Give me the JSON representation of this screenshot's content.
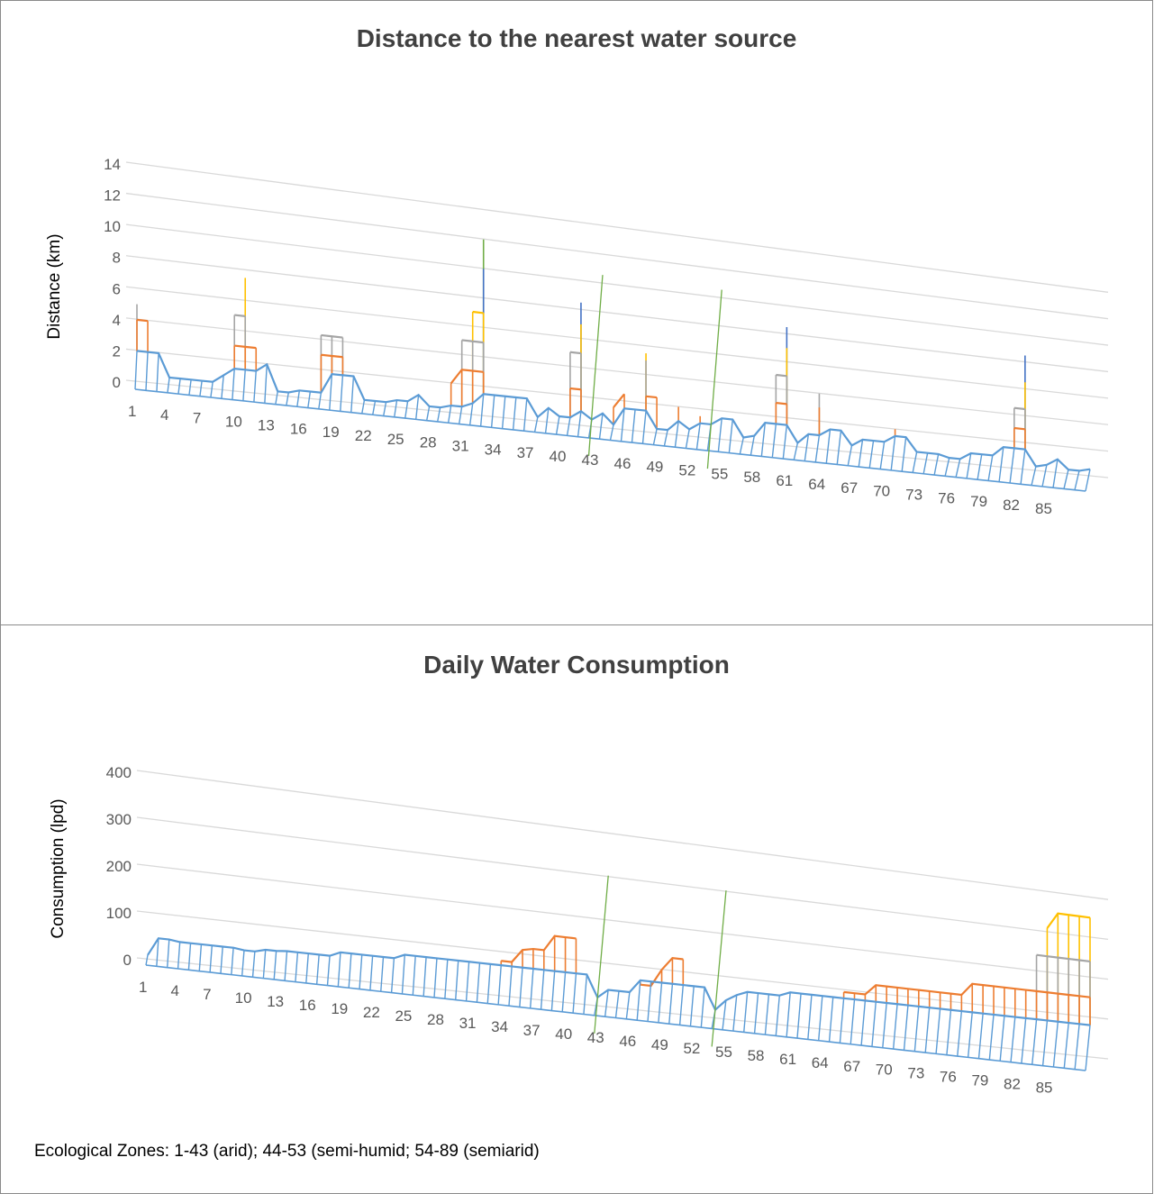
{
  "footnote": "Ecological Zones: 1-43 (arid); 44-53 (semi-humid; 54-89 (semiarid)",
  "chart_data": [
    {
      "type": "line-3d",
      "title": "Distance to the nearest water source",
      "ylabel": "Distance (km)",
      "ylim": [
        0,
        14
      ],
      "yticks": [
        "0",
        "2",
        "4",
        "6",
        "8",
        "10",
        "12",
        "14"
      ],
      "xticks": [
        "1",
        "4",
        "7",
        "10",
        "13",
        "16",
        "19",
        "22",
        "25",
        "28",
        "31",
        "34",
        "37",
        "40",
        "43",
        "46",
        "49",
        "52",
        "55",
        "58",
        "61",
        "64",
        "67",
        "70",
        "73",
        "76",
        "79",
        "82",
        "85"
      ],
      "zone_boundaries": [
        43,
        54
      ],
      "colors": {
        "base": "#5b9bd5",
        "orange": "#ed7d31",
        "gray": "#a5a5a5",
        "yellow": "#ffc000",
        "blue": "#4472c4",
        "green": "#70ad47",
        "grid": "#d9d9d9",
        "zone_line": "#70ad47"
      },
      "series": [
        {
          "values": [
            2,
            2,
            2,
            0.5,
            0.5,
            0.5,
            0.5,
            0.5,
            1,
            1.5,
            1.5,
            1.5,
            2,
            0.3,
            0.3,
            0.5,
            0.5,
            0.5,
            1.8,
            1.8,
            1.8,
            0.3,
            0.3,
            0.3,
            0.5,
            0.5,
            1,
            0.3,
            0.3,
            0.5,
            0.5,
            0.8,
            1.5,
            1.5,
            1.5,
            1.5,
            1.5,
            0.3,
            1,
            0.5,
            0.5,
            1,
            0.5,
            1,
            0.3,
            1.5,
            1.5,
            1.5,
            0.3,
            0.3,
            1,
            0.5,
            1,
            1,
            1.5,
            1.5,
            0.3,
            0.5,
            1.5,
            1.5,
            1.5,
            0.3,
            1,
            1,
            1.5,
            1.5,
            0.5,
            1,
            1,
            1,
            1.5,
            1.5,
            0.5,
            0.5,
            0.5,
            0.3,
            0.3,
            0.8,
            0.8,
            0.8,
            1.5,
            1.5,
            1.5,
            0.3,
            0.5,
            1,
            0.3,
            0.3,
            0.5
          ]
        },
        {
          "values": [
            4,
            4,
            0,
            0,
            0,
            0,
            0,
            0,
            0,
            3,
            3,
            3,
            0,
            0,
            0,
            0,
            0,
            3,
            3,
            3,
            0,
            0,
            0,
            0,
            0,
            0,
            0,
            0,
            0,
            2,
            3,
            3,
            3,
            0,
            1.5,
            0,
            0,
            0,
            0,
            0,
            2.5,
            2.5,
            0,
            0,
            1.5,
            2.5,
            0,
            2.5,
            2.5,
            0,
            2,
            0,
            1.5,
            0,
            0,
            0,
            0,
            0,
            0,
            3,
            3,
            0,
            0,
            3,
            0,
            0,
            0,
            0,
            0,
            0,
            2,
            0,
            0,
            0,
            0,
            0,
            0,
            0,
            0,
            0,
            0,
            3,
            3,
            0,
            0,
            0,
            0,
            0,
            0
          ]
        },
        {
          "values": [
            5,
            0,
            0,
            0,
            0,
            0,
            0,
            0,
            0,
            5,
            5,
            0,
            0,
            0,
            0,
            0,
            0,
            4.3,
            4.3,
            4.3,
            0,
            0,
            0,
            0,
            0,
            0,
            0,
            0,
            0,
            0,
            5,
            5,
            5,
            0,
            0,
            0,
            0,
            0,
            0,
            0,
            5,
            5,
            0,
            0,
            0,
            0,
            0,
            5,
            0,
            0,
            0,
            0,
            0,
            0,
            0,
            0,
            0,
            0,
            0,
            5,
            5,
            0,
            0,
            4,
            0,
            0,
            0,
            0,
            0,
            0,
            0,
            0,
            0,
            0,
            0,
            0,
            0,
            0,
            0,
            0,
            0,
            4.5,
            4.5,
            0,
            0,
            0,
            0,
            0,
            0
          ]
        },
        {
          "values": [
            0,
            0,
            0,
            0,
            0,
            0,
            0,
            0,
            0,
            0,
            7.5,
            0,
            0,
            0,
            0,
            0,
            0,
            0,
            0,
            0,
            0,
            0,
            0,
            0,
            0,
            0,
            0,
            0,
            0,
            0,
            0,
            7,
            7,
            0,
            0,
            0,
            0,
            0,
            0,
            0,
            0,
            7,
            0,
            0,
            0,
            0,
            0,
            5.5,
            0,
            0,
            0,
            0,
            0,
            0,
            0,
            0,
            0,
            0,
            0,
            0,
            7,
            0,
            0,
            0,
            0,
            0,
            0,
            0,
            0,
            0,
            0,
            0,
            0,
            0,
            0,
            0,
            0,
            0,
            0,
            0,
            0,
            0,
            6.5,
            0,
            0,
            0,
            0,
            0,
            0
          ]
        },
        {
          "values": [
            0,
            0,
            0,
            0,
            0,
            0,
            0,
            0,
            0,
            0,
            0,
            0,
            0,
            0,
            0,
            0,
            0,
            0,
            0,
            0,
            0,
            0,
            0,
            0,
            0,
            0,
            0,
            0,
            0,
            0,
            0,
            0,
            10,
            0,
            0,
            0,
            0,
            0,
            0,
            0,
            0,
            8.5,
            0,
            0,
            0,
            0,
            0,
            0,
            0,
            0,
            0,
            0,
            0,
            0,
            0,
            0,
            0,
            0,
            0,
            0,
            8.5,
            0,
            0,
            0,
            0,
            0,
            0,
            0,
            0,
            0,
            0,
            0,
            0,
            0,
            0,
            0,
            0,
            0,
            0,
            0,
            0,
            0,
            8.5,
            0,
            0,
            0,
            0,
            0,
            0
          ]
        },
        {
          "values": [
            0,
            0,
            0,
            0,
            0,
            0,
            0,
            0,
            0,
            0,
            0,
            0,
            0,
            0,
            0,
            0,
            0,
            0,
            0,
            0,
            0,
            0,
            0,
            0,
            0,
            0,
            0,
            0,
            0,
            0,
            0,
            0,
            12,
            0,
            0,
            0,
            0,
            0,
            0,
            0,
            0,
            0,
            0,
            0,
            0,
            0,
            0,
            0,
            0,
            0,
            0,
            0,
            0,
            0,
            0,
            0,
            0,
            0,
            0,
            0,
            0,
            0,
            0,
            0,
            0,
            0,
            0,
            0,
            0,
            0,
            0,
            0,
            0,
            0,
            0,
            0,
            0,
            0,
            0,
            0,
            0,
            0,
            0,
            0,
            0,
            0,
            0,
            0,
            0
          ]
        }
      ]
    },
    {
      "type": "line-3d",
      "title": "Daily Water Consumption",
      "ylabel": "Consumption (lpd)",
      "ylim": [
        0,
        400
      ],
      "yticks": [
        "0",
        "100",
        "200",
        "300",
        "400"
      ],
      "xticks": [
        "1",
        "4",
        "7",
        "10",
        "13",
        "16",
        "19",
        "22",
        "25",
        "28",
        "31",
        "34",
        "37",
        "40",
        "43",
        "46",
        "49",
        "52",
        "55",
        "58",
        "61",
        "64",
        "67",
        "70",
        "73",
        "76",
        "79",
        "82",
        "85"
      ],
      "zone_boundaries": [
        43,
        54
      ],
      "colors": {
        "base": "#5b9bd5",
        "orange": "#ed7d31",
        "gray": "#a5a5a5",
        "yellow": "#ffc000",
        "grid": "#d9d9d9",
        "zone_line": "#70ad47"
      },
      "series": [
        {
          "values": [
            10,
            48,
            48,
            45,
            45,
            45,
            45,
            45,
            45,
            42,
            42,
            48,
            48,
            50,
            50,
            50,
            50,
            50,
            60,
            60,
            60,
            60,
            60,
            60,
            70,
            70,
            70,
            70,
            70,
            70,
            70,
            70,
            70,
            70,
            70,
            70,
            70,
            70,
            70,
            70,
            70,
            70,
            20,
            40,
            40,
            40,
            70,
            70,
            70,
            70,
            70,
            70,
            70,
            20,
            45,
            60,
            70,
            70,
            70,
            70,
            80,
            80,
            80,
            80,
            80,
            80,
            80,
            80,
            80,
            80,
            80,
            80,
            80,
            80,
            80,
            80,
            80,
            80,
            80,
            80,
            80,
            80,
            80,
            80,
            80,
            80,
            80,
            80,
            80
          ]
        },
        {
          "values": [
            0,
            0,
            0,
            0,
            0,
            0,
            0,
            0,
            0,
            0,
            0,
            0,
            0,
            0,
            0,
            0,
            0,
            0,
            0,
            0,
            0,
            0,
            0,
            0,
            0,
            0,
            0,
            0,
            0,
            0,
            0,
            0,
            0,
            80,
            80,
            110,
            115,
            115,
            150,
            150,
            150,
            0,
            0,
            0,
            0,
            0,
            60,
            60,
            100,
            130,
            130,
            0,
            0,
            0,
            0,
            0,
            0,
            0,
            0,
            0,
            0,
            0,
            0,
            0,
            0,
            95,
            95,
            95,
            120,
            120,
            120,
            120,
            120,
            120,
            120,
            120,
            120,
            150,
            150,
            150,
            150,
            150,
            150,
            150,
            150,
            150,
            150,
            150,
            150
          ]
        },
        {
          "values": [
            0,
            0,
            0,
            0,
            0,
            0,
            0,
            0,
            0,
            0,
            0,
            0,
            0,
            0,
            0,
            0,
            0,
            0,
            0,
            0,
            0,
            0,
            0,
            0,
            0,
            0,
            0,
            0,
            0,
            0,
            0,
            0,
            0,
            0,
            0,
            0,
            0,
            0,
            0,
            0,
            0,
            0,
            0,
            0,
            0,
            0,
            0,
            0,
            0,
            0,
            0,
            0,
            0,
            0,
            0,
            0,
            0,
            0,
            0,
            0,
            0,
            0,
            0,
            0,
            0,
            0,
            0,
            0,
            0,
            0,
            0,
            0,
            0,
            0,
            0,
            0,
            0,
            0,
            0,
            0,
            0,
            0,
            0,
            240,
            240,
            240,
            240,
            240,
            240
          ]
        },
        {
          "values": [
            0,
            0,
            0,
            0,
            0,
            0,
            0,
            0,
            0,
            0,
            0,
            0,
            0,
            0,
            0,
            0,
            0,
            0,
            0,
            0,
            0,
            0,
            0,
            0,
            0,
            0,
            0,
            0,
            0,
            0,
            0,
            0,
            0,
            0,
            0,
            0,
            0,
            0,
            0,
            0,
            0,
            0,
            0,
            0,
            0,
            0,
            0,
            0,
            0,
            0,
            0,
            0,
            0,
            0,
            0,
            0,
            0,
            0,
            0,
            0,
            0,
            0,
            0,
            0,
            0,
            0,
            0,
            0,
            0,
            0,
            0,
            0,
            0,
            0,
            0,
            0,
            0,
            0,
            0,
            0,
            0,
            0,
            0,
            0,
            310,
            350,
            350,
            350,
            350
          ]
        }
      ]
    }
  ]
}
